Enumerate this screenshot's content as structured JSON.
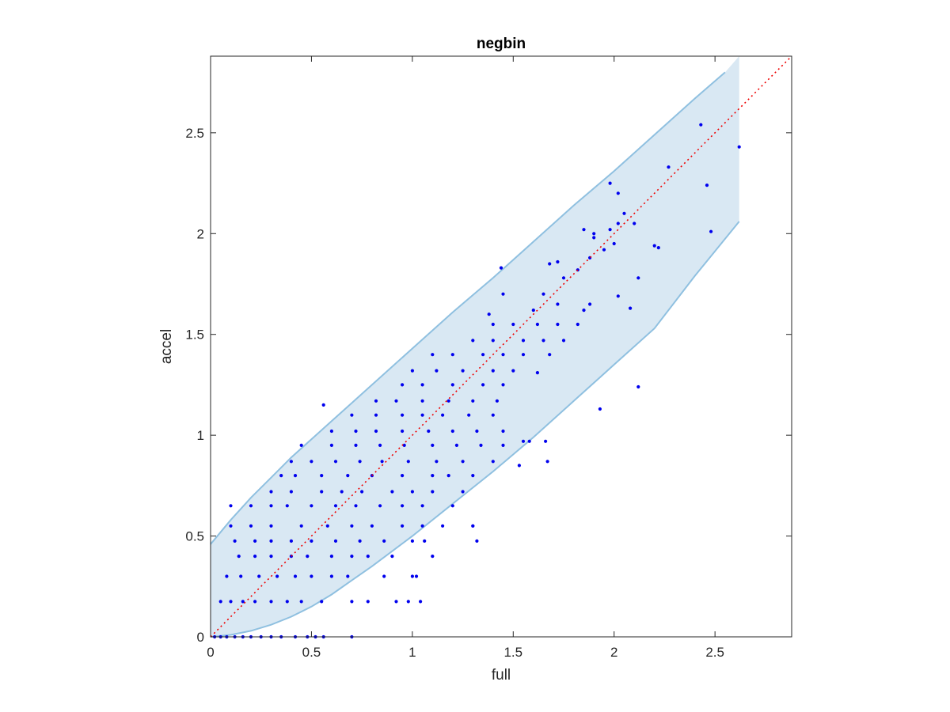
{
  "chart_data": {
    "type": "scatter",
    "title": "negbin",
    "xlabel": "full",
    "ylabel": "accel",
    "xlim": [
      0,
      2.88
    ],
    "ylim": [
      0,
      2.88
    ],
    "xticks": [
      0,
      0.5,
      1,
      1.5,
      2,
      2.5
    ],
    "yticks": [
      0,
      0.5,
      1,
      1.5,
      2,
      2.5
    ],
    "xtick_labels": [
      "0",
      "0.5",
      "1",
      "1.5",
      "2",
      "2.5"
    ],
    "ytick_labels": [
      "0",
      "0.5",
      "1",
      "1.5",
      "2",
      "2.5"
    ],
    "grid": false,
    "colors": {
      "points": "#0000ee",
      "band_fill": "#d9e8f3",
      "band_edge": "#8fc0e0",
      "diagonal": "#ee0000"
    },
    "band": {
      "x_max": 2.62,
      "upper": [
        [
          0,
          0.46
        ],
        [
          0.1,
          0.58
        ],
        [
          0.2,
          0.69
        ],
        [
          0.3,
          0.79
        ],
        [
          0.4,
          0.89
        ],
        [
          0.5,
          0.98
        ],
        [
          0.6,
          1.07
        ],
        [
          0.8,
          1.25
        ],
        [
          1.0,
          1.43
        ],
        [
          1.2,
          1.61
        ],
        [
          1.4,
          1.78
        ],
        [
          1.6,
          1.96
        ],
        [
          1.8,
          2.14
        ],
        [
          2.0,
          2.31
        ],
        [
          2.2,
          2.49
        ],
        [
          2.4,
          2.67
        ],
        [
          2.55,
          2.8
        ]
      ],
      "lower": [
        [
          0,
          0
        ],
        [
          0.1,
          0.01
        ],
        [
          0.2,
          0.03
        ],
        [
          0.3,
          0.06
        ],
        [
          0.4,
          0.1
        ],
        [
          0.5,
          0.15
        ],
        [
          0.6,
          0.21
        ],
        [
          0.7,
          0.28
        ],
        [
          0.8,
          0.35
        ],
        [
          1.0,
          0.5
        ],
        [
          1.2,
          0.66
        ],
        [
          1.4,
          0.82
        ],
        [
          1.6,
          0.99
        ],
        [
          1.8,
          1.17
        ],
        [
          2.0,
          1.35
        ],
        [
          2.2,
          1.53
        ],
        [
          2.4,
          1.79
        ],
        [
          2.62,
          2.06
        ]
      ]
    },
    "diagonal": [
      [
        0,
        0
      ],
      [
        2.88,
        2.88
      ]
    ],
    "x": [
      0.02,
      0.05,
      0.08,
      0.12,
      0.16,
      0.2,
      0.25,
      0.3,
      0.35,
      0.42,
      0.48,
      0.52,
      0.56,
      0.7,
      0.05,
      0.1,
      0.16,
      0.22,
      0.3,
      0.38,
      0.45,
      0.55,
      0.7,
      0.78,
      0.92,
      0.98,
      1.04,
      0.08,
      0.15,
      0.24,
      0.33,
      0.42,
      0.5,
      0.6,
      0.68,
      0.86,
      1.0,
      1.02,
      0.14,
      0.22,
      0.3,
      0.4,
      0.48,
      0.6,
      0.7,
      0.78,
      0.9,
      1.1,
      0.12,
      0.22,
      0.3,
      0.4,
      0.5,
      0.62,
      0.74,
      0.86,
      1.0,
      1.06,
      1.32,
      0.1,
      0.2,
      0.3,
      0.45,
      0.58,
      0.7,
      0.8,
      0.95,
      1.05,
      1.15,
      1.3,
      0.1,
      0.2,
      0.3,
      0.38,
      0.5,
      0.62,
      0.72,
      0.84,
      0.95,
      1.05,
      1.2,
      0.3,
      0.4,
      0.55,
      0.65,
      0.75,
      0.9,
      1.0,
      1.1,
      1.25,
      0.35,
      0.42,
      0.55,
      0.68,
      0.8,
      0.95,
      1.1,
      1.18,
      1.3,
      0.4,
      0.5,
      0.62,
      0.74,
      0.85,
      0.98,
      1.12,
      1.25,
      1.4,
      0.45,
      0.6,
      0.72,
      0.84,
      0.96,
      1.1,
      1.22,
      1.34,
      1.45,
      0.6,
      0.72,
      0.82,
      0.95,
      1.08,
      1.2,
      1.32,
      1.45,
      0.7,
      0.82,
      0.95,
      1.05,
      1.15,
      1.28,
      1.4,
      0.82,
      0.92,
      1.05,
      1.18,
      1.3,
      1.42,
      0.95,
      1.05,
      1.2,
      1.35,
      1.45,
      1.0,
      1.12,
      1.25,
      1.4,
      1.5,
      1.1,
      1.2,
      1.35,
      1.45,
      1.55,
      1.68,
      1.3,
      1.4,
      1.55,
      1.65,
      1.75,
      1.4,
      1.5,
      1.62,
      1.72,
      1.82,
      1.38,
      1.6,
      1.72,
      1.85,
      1.45,
      1.65,
      1.75,
      1.82,
      1.88,
      1.95,
      2.0,
      1.85,
      1.9,
      2.02,
      1.9,
      1.98,
      2.05,
      1.98,
      2.02,
      2.1,
      2.22,
      2.2,
      2.12,
      1.66,
      1.58,
      1.67,
      1.55,
      1.53,
      1.3,
      1.93,
      2.12,
      2.43,
      2.46,
      2.27,
      2.48,
      2.62,
      2.02,
      0.56,
      1.68,
      1.72,
      1.88,
      2.08,
      1.62,
      1.44
    ],
    "y": [
      0.0,
      0.0,
      0.0,
      0.0,
      0.0,
      0.0,
      0.0,
      0.0,
      0.0,
      0.0,
      0.0,
      0.0,
      0.0,
      0.0,
      0.175,
      0.175,
      0.175,
      0.175,
      0.175,
      0.175,
      0.175,
      0.175,
      0.175,
      0.175,
      0.175,
      0.175,
      0.175,
      0.3,
      0.3,
      0.3,
      0.3,
      0.3,
      0.3,
      0.3,
      0.3,
      0.3,
      0.3,
      0.3,
      0.4,
      0.4,
      0.4,
      0.4,
      0.4,
      0.4,
      0.4,
      0.4,
      0.4,
      0.4,
      0.475,
      0.475,
      0.475,
      0.475,
      0.475,
      0.475,
      0.475,
      0.475,
      0.475,
      0.475,
      0.475,
      0.55,
      0.55,
      0.55,
      0.55,
      0.55,
      0.55,
      0.55,
      0.55,
      0.55,
      0.55,
      0.55,
      0.65,
      0.65,
      0.65,
      0.65,
      0.65,
      0.65,
      0.65,
      0.65,
      0.65,
      0.65,
      0.65,
      0.72,
      0.72,
      0.72,
      0.72,
      0.72,
      0.72,
      0.72,
      0.72,
      0.72,
      0.8,
      0.8,
      0.8,
      0.8,
      0.8,
      0.8,
      0.8,
      0.8,
      0.8,
      0.87,
      0.87,
      0.87,
      0.87,
      0.87,
      0.87,
      0.87,
      0.87,
      0.87,
      0.95,
      0.95,
      0.95,
      0.95,
      0.95,
      0.95,
      0.95,
      0.95,
      0.95,
      1.02,
      1.02,
      1.02,
      1.02,
      1.02,
      1.02,
      1.02,
      1.02,
      1.1,
      1.1,
      1.1,
      1.1,
      1.1,
      1.1,
      1.1,
      1.17,
      1.17,
      1.17,
      1.17,
      1.17,
      1.17,
      1.25,
      1.25,
      1.25,
      1.25,
      1.25,
      1.32,
      1.32,
      1.32,
      1.32,
      1.32,
      1.4,
      1.4,
      1.4,
      1.4,
      1.4,
      1.4,
      1.47,
      1.47,
      1.47,
      1.47,
      1.47,
      1.55,
      1.55,
      1.55,
      1.55,
      1.55,
      1.6,
      1.62,
      1.65,
      1.62,
      1.7,
      1.7,
      1.78,
      1.82,
      1.88,
      1.92,
      1.95,
      2.02,
      2.0,
      2.05,
      1.98,
      2.02,
      2.1,
      2.25,
      2.2,
      2.05,
      1.93,
      1.94,
      1.78,
      0.97,
      0.97,
      0.87,
      0.97,
      0.85,
      0.55,
      1.13,
      1.24,
      2.54,
      2.24,
      2.33,
      2.01,
      2.43,
      1.69,
      1.15,
      1.85,
      1.86,
      1.65,
      1.63,
      1.31,
      1.83
    ]
  }
}
